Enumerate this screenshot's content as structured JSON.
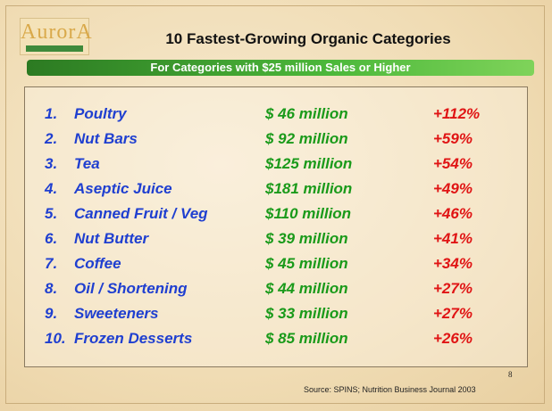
{
  "logo": "AurorA",
  "header": {
    "title": "10 Fastest-Growing Organic Categories",
    "subtitle": "For Categories with $25 million Sales or Higher"
  },
  "table": {
    "rows": [
      [
        "1.",
        "Poultry",
        "$ 46 million",
        "+112%"
      ],
      [
        "2.",
        "Nut Bars",
        "$ 92 million",
        "+59%"
      ],
      [
        "3.",
        "Tea",
        "$125 million",
        "+54%"
      ],
      [
        "4.",
        "Aseptic Juice",
        "$181 million",
        "+49%"
      ],
      [
        "5.",
        "Canned Fruit / Veg",
        "$110 million",
        "+46%"
      ],
      [
        "6.",
        "Nut Butter",
        "$ 39 million",
        "+41%"
      ],
      [
        "7.",
        "Coffee",
        "$ 45 million",
        "+34%"
      ],
      [
        "8.",
        "Oil / Shortening",
        "$ 44 million",
        "+27%"
      ],
      [
        "9.",
        "Sweeteners",
        "$ 33 million",
        "+27%"
      ],
      [
        "10.",
        "Frozen Desserts",
        "$ 85 million",
        "+26%"
      ]
    ]
  },
  "footer": {
    "source": "Source: SPINS; Nutrition Business Journal 2003",
    "page": "8"
  }
}
